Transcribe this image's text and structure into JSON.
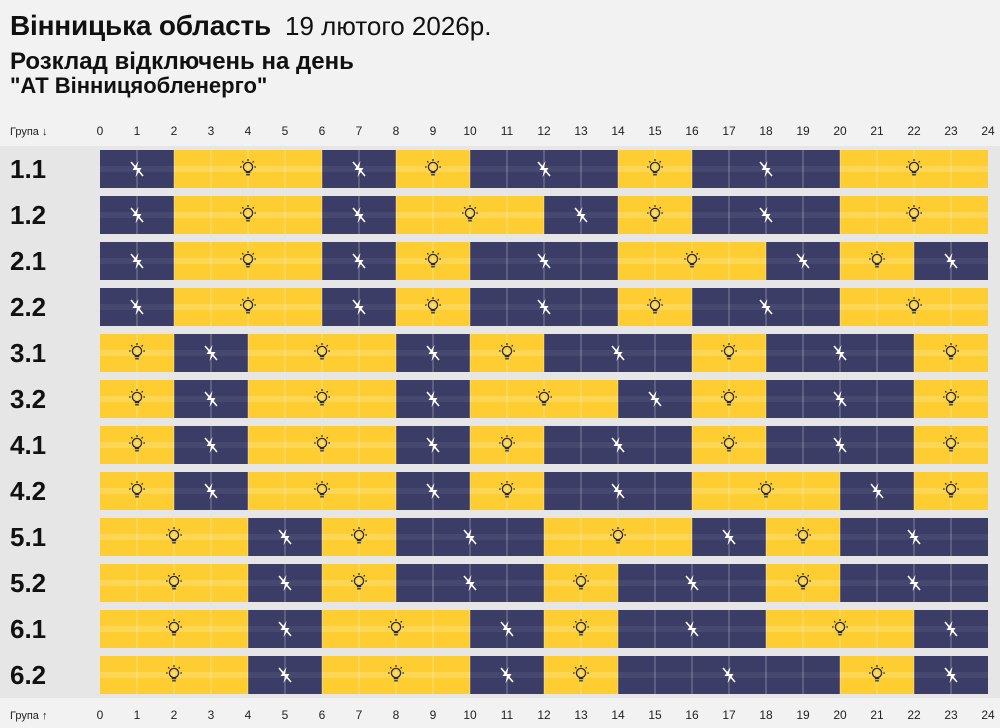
{
  "header": {
    "region": "Вінницька область",
    "date": "19 лютого 2026р.",
    "subtitle": "Розклад відключень на день",
    "company": "\"АТ Вінницяобленерго\""
  },
  "chart_data": {
    "type": "heatmap",
    "x_axis": {
      "label_top": "Група ↓",
      "label_bottom": "Група ↑",
      "ticks": [
        "0",
        "1",
        "2",
        "3",
        "4",
        "5",
        "6",
        "7",
        "8",
        "9",
        "10",
        "11",
        "12",
        "13",
        "14",
        "15",
        "16",
        "17",
        "18",
        "19",
        "20",
        "21",
        "22",
        "23",
        "24"
      ],
      "range": [
        0,
        24
      ],
      "unit": "hours"
    },
    "legend": {
      "on": {
        "icon": "lightbulb-icon",
        "color": "#fdcd31"
      },
      "off": {
        "icon": "power-off-icon",
        "color": "#3b3d66"
      }
    },
    "colors": {
      "row_band": "#e6e6e6",
      "page": "#f2f2f2"
    },
    "groups": [
      {
        "name": "1.1",
        "segments": [
          [
            "off",
            0,
            2
          ],
          [
            "on",
            2,
            6
          ],
          [
            "off",
            6,
            8
          ],
          [
            "on",
            8,
            10
          ],
          [
            "off",
            10,
            14
          ],
          [
            "on",
            14,
            16
          ],
          [
            "off",
            16,
            20
          ],
          [
            "on",
            20,
            24
          ]
        ]
      },
      {
        "name": "1.2",
        "segments": [
          [
            "off",
            0,
            2
          ],
          [
            "on",
            2,
            6
          ],
          [
            "off",
            6,
            8
          ],
          [
            "on",
            8,
            12
          ],
          [
            "off",
            12,
            14
          ],
          [
            "on",
            14,
            16
          ],
          [
            "off",
            16,
            20
          ],
          [
            "on",
            20,
            24
          ]
        ]
      },
      {
        "name": "2.1",
        "segments": [
          [
            "off",
            0,
            2
          ],
          [
            "on",
            2,
            6
          ],
          [
            "off",
            6,
            8
          ],
          [
            "on",
            8,
            10
          ],
          [
            "off",
            10,
            14
          ],
          [
            "on",
            14,
            18
          ],
          [
            "off",
            18,
            20
          ],
          [
            "on",
            20,
            22
          ],
          [
            "off",
            22,
            24
          ]
        ]
      },
      {
        "name": "2.2",
        "segments": [
          [
            "off",
            0,
            2
          ],
          [
            "on",
            2,
            6
          ],
          [
            "off",
            6,
            8
          ],
          [
            "on",
            8,
            10
          ],
          [
            "off",
            10,
            14
          ],
          [
            "on",
            14,
            16
          ],
          [
            "off",
            16,
            20
          ],
          [
            "on",
            20,
            24
          ]
        ]
      },
      {
        "name": "3.1",
        "segments": [
          [
            "on",
            0,
            2
          ],
          [
            "off",
            2,
            4
          ],
          [
            "on",
            4,
            8
          ],
          [
            "off",
            8,
            10
          ],
          [
            "on",
            10,
            12
          ],
          [
            "off",
            12,
            16
          ],
          [
            "on",
            16,
            18
          ],
          [
            "off",
            18,
            22
          ],
          [
            "on",
            22,
            24
          ]
        ]
      },
      {
        "name": "3.2",
        "segments": [
          [
            "on",
            0,
            2
          ],
          [
            "off",
            2,
            4
          ],
          [
            "on",
            4,
            8
          ],
          [
            "off",
            8,
            10
          ],
          [
            "on",
            10,
            14
          ],
          [
            "off",
            14,
            16
          ],
          [
            "on",
            16,
            18
          ],
          [
            "off",
            18,
            22
          ],
          [
            "on",
            22,
            24
          ]
        ]
      },
      {
        "name": "4.1",
        "segments": [
          [
            "on",
            0,
            2
          ],
          [
            "off",
            2,
            4
          ],
          [
            "on",
            4,
            8
          ],
          [
            "off",
            8,
            10
          ],
          [
            "on",
            10,
            12
          ],
          [
            "off",
            12,
            16
          ],
          [
            "on",
            16,
            18
          ],
          [
            "off",
            18,
            22
          ],
          [
            "on",
            22,
            24
          ]
        ]
      },
      {
        "name": "4.2",
        "segments": [
          [
            "on",
            0,
            2
          ],
          [
            "off",
            2,
            4
          ],
          [
            "on",
            4,
            8
          ],
          [
            "off",
            8,
            10
          ],
          [
            "on",
            10,
            12
          ],
          [
            "off",
            12,
            16
          ],
          [
            "on",
            16,
            20
          ],
          [
            "off",
            20,
            22
          ],
          [
            "on",
            22,
            24
          ]
        ]
      },
      {
        "name": "5.1",
        "segments": [
          [
            "on",
            0,
            4
          ],
          [
            "off",
            4,
            6
          ],
          [
            "on",
            6,
            8
          ],
          [
            "off",
            8,
            12
          ],
          [
            "on",
            12,
            16
          ],
          [
            "off",
            16,
            18
          ],
          [
            "on",
            18,
            20
          ],
          [
            "off",
            20,
            24
          ]
        ]
      },
      {
        "name": "5.2",
        "segments": [
          [
            "on",
            0,
            4
          ],
          [
            "off",
            4,
            6
          ],
          [
            "on",
            6,
            8
          ],
          [
            "off",
            8,
            12
          ],
          [
            "on",
            12,
            14
          ],
          [
            "off",
            14,
            18
          ],
          [
            "on",
            18,
            20
          ],
          [
            "off",
            20,
            24
          ]
        ]
      },
      {
        "name": "6.1",
        "segments": [
          [
            "on",
            0,
            4
          ],
          [
            "off",
            4,
            6
          ],
          [
            "on",
            6,
            10
          ],
          [
            "off",
            10,
            12
          ],
          [
            "on",
            12,
            14
          ],
          [
            "off",
            14,
            18
          ],
          [
            "on",
            18,
            22
          ],
          [
            "off",
            22,
            24
          ]
        ]
      },
      {
        "name": "6.2",
        "segments": [
          [
            "on",
            0,
            4
          ],
          [
            "off",
            4,
            6
          ],
          [
            "on",
            6,
            10
          ],
          [
            "off",
            10,
            12
          ],
          [
            "on",
            12,
            14
          ],
          [
            "off",
            14,
            20
          ],
          [
            "on",
            20,
            22
          ],
          [
            "off",
            22,
            24
          ]
        ]
      }
    ]
  }
}
